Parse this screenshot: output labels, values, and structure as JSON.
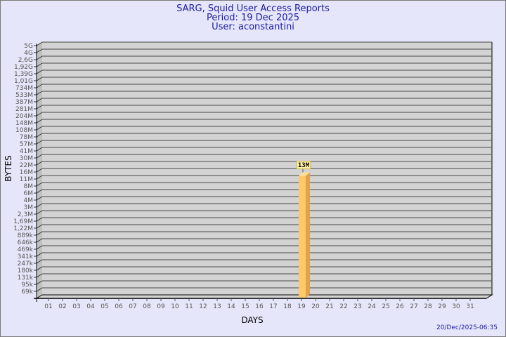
{
  "header": {
    "title": "SARG, Squid User Access Reports",
    "period": "Period: 19 Dec 2025",
    "user": "User: aconstantini"
  },
  "footer": {
    "timestamp": "20/Dec/2025-06:35"
  },
  "colors": {
    "background": "#e6e6fa",
    "plot_back": "#d3d3d3",
    "plot_side": "#c0c0c0",
    "grid": "#666666",
    "bar_front": "#ffc868",
    "bar_side": "#e0a24a",
    "bar_top": "#ffe099",
    "title": "#1a1aa6"
  },
  "chart_data": {
    "type": "bar",
    "xlabel": "DAYS",
    "ylabel": "BYTES",
    "grid": true,
    "categories": [
      "01",
      "02",
      "03",
      "04",
      "05",
      "06",
      "07",
      "08",
      "09",
      "10",
      "11",
      "12",
      "13",
      "14",
      "15",
      "16",
      "17",
      "18",
      "19",
      "20",
      "21",
      "22",
      "23",
      "24",
      "25",
      "26",
      "27",
      "28",
      "29",
      "30",
      "31"
    ],
    "yticks": [
      "5G",
      "4G",
      "2,6G",
      "1,92G",
      "1,39G",
      "1,01G",
      "734M",
      "533M",
      "387M",
      "281M",
      "204M",
      "148M",
      "108M",
      "78M",
      "57M",
      "41M",
      "30M",
      "22M",
      "16M",
      "11M",
      "8M",
      "6M",
      "4M",
      "3M",
      "2,3M",
      "1,69M",
      "1,22M",
      "889k",
      "646k",
      "469k",
      "341k",
      "247k",
      "180k",
      "131k",
      "95k",
      "69k"
    ],
    "series": [
      {
        "points": [
          {
            "x": "19",
            "value": "13M",
            "label": "13M"
          }
        ]
      }
    ]
  }
}
